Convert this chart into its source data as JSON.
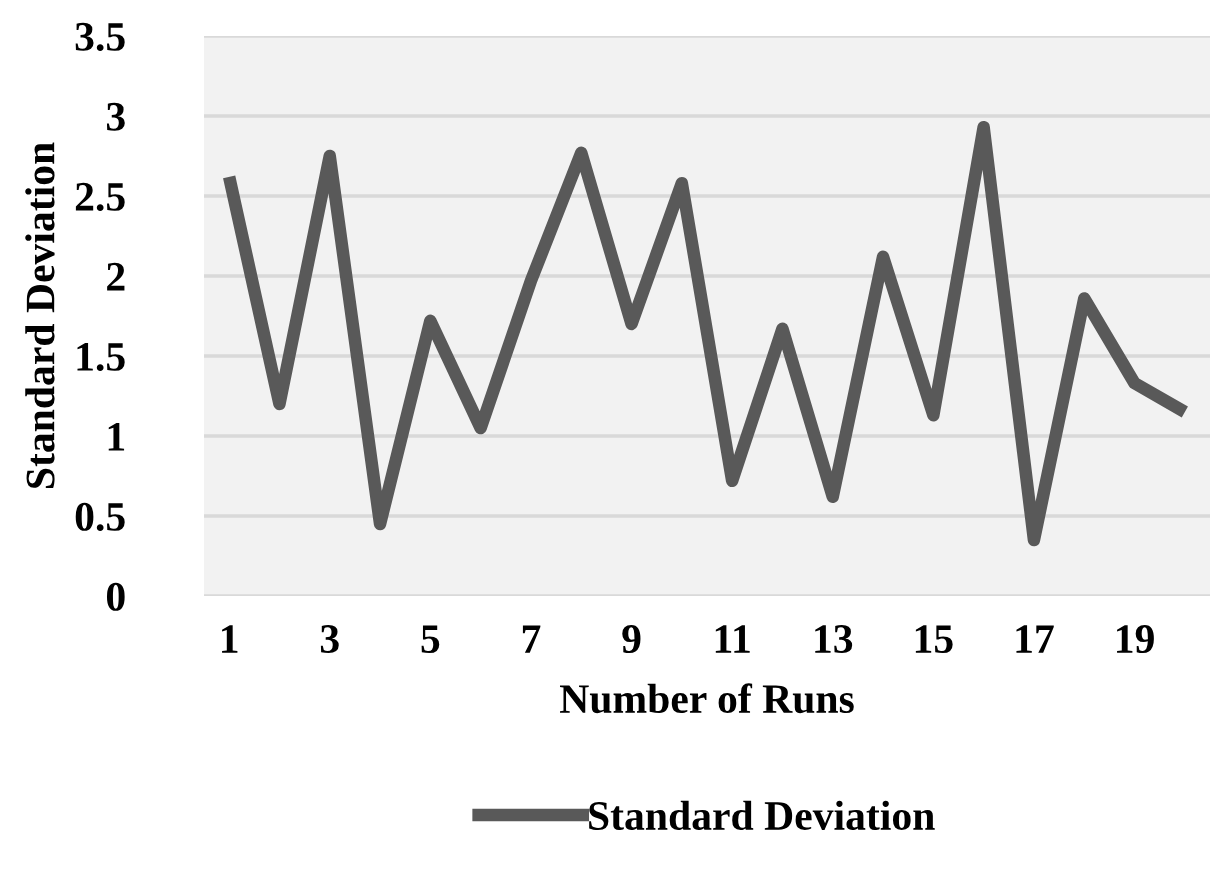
{
  "chart_data": {
    "type": "line",
    "xlabel": "Number of Runs",
    "ylabel": "Standard Deviation",
    "categories": [
      "1",
      null,
      "3",
      null,
      "5",
      null,
      "7",
      null,
      "9",
      null,
      "11",
      null,
      "13",
      null,
      "15",
      null,
      "17",
      null,
      "19",
      null
    ],
    "series": [
      {
        "name": "Standard Deviation",
        "color": "#595959",
        "values": [
          2.62,
          1.2,
          2.75,
          0.45,
          1.72,
          1.05,
          1.97,
          2.77,
          1.7,
          2.58,
          0.72,
          1.67,
          0.62,
          2.12,
          1.13,
          2.93,
          0.35,
          1.86,
          1.33,
          1.15
        ]
      }
    ],
    "ylim": [
      0,
      3.5
    ],
    "yticks": [
      0,
      0.5,
      1,
      1.5,
      2,
      2.5,
      3,
      3.5
    ],
    "grid": "y",
    "legend": "bottom",
    "marker": "none",
    "line_style": "solid"
  }
}
